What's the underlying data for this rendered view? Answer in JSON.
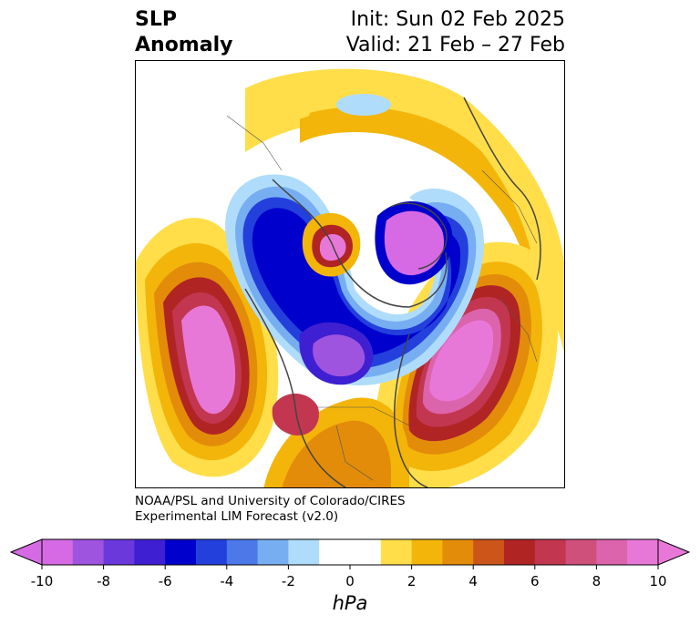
{
  "title": {
    "left_line1": "SLP",
    "left_line2": "Anomaly",
    "init": "Init: Sun 02 Feb 2025",
    "valid": "Valid: 21 Feb – 27 Feb"
  },
  "credit": {
    "line1": "NOAA/PSL and University of Colorado/CIRES",
    "line2": "Experimental LIM Forecast (v2.0)"
  },
  "colorbar": {
    "unit": "hPa",
    "ticks": [
      "-10",
      "-8",
      "-6",
      "-4",
      "-2",
      "0",
      "2",
      "4",
      "6",
      "8",
      "10"
    ],
    "colors": [
      "#d66ae5",
      "#9f54df",
      "#6b38dc",
      "#3f1fd2",
      "#0000cc",
      "#2340dc",
      "#4c78e8",
      "#77aef2",
      "#afdcfa",
      "#ffffff",
      "#ffffff",
      "#ffde4a",
      "#f3b50a",
      "#e38c0a",
      "#cc5519",
      "#b12424",
      "#c23650",
      "#d0507c",
      "#dc64ad",
      "#e878d8"
    ],
    "extend_low_color": "#d66ae5",
    "extend_high_color": "#e878d8"
  }
}
